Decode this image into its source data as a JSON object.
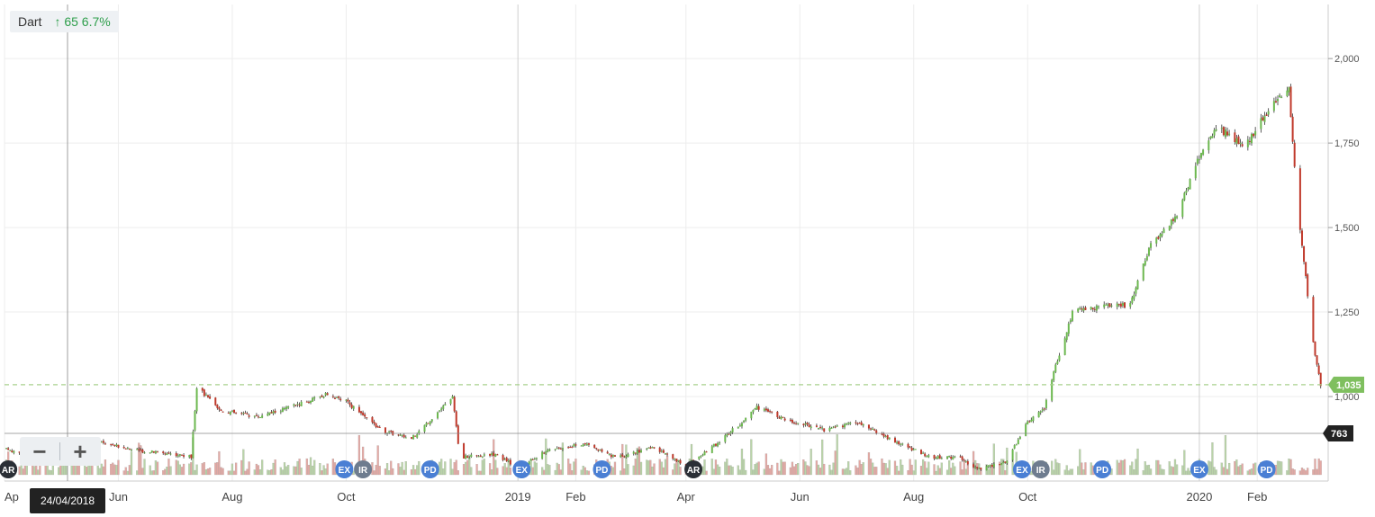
{
  "legend": {
    "symbol": "Dart",
    "arrow": "↑",
    "change": "65 6.7%"
  },
  "zoom": {
    "out_label": "−",
    "in_label": "+"
  },
  "crosshair": {
    "date_label": "24/04/2018",
    "price_label": "763"
  },
  "last_price": {
    "label": "1,035",
    "value": 1035
  },
  "colors": {
    "up": "#6cb84f",
    "down": "#c0392b",
    "vol_up": "#b9d4a8",
    "vol_down": "#e4a9a4",
    "last_line": "#a9d08e",
    "event_blue": "#4a7fd4",
    "event_gray": "#6e7c8f",
    "event_dark": "#2b2f36"
  },
  "chart_data": {
    "type": "candlestick",
    "title": "",
    "series_name": "Dart",
    "y_axis": {
      "position": "right",
      "ylim": [
        750,
        2160
      ],
      "ticks": [
        1000,
        1250,
        1500,
        1750,
        2000
      ],
      "tick_labels": [
        "1,000",
        "1,250",
        "1,500",
        "1,750",
        "2,000"
      ]
    },
    "x_axis": {
      "xlim": [
        "2018-04-01",
        "2020-03-10"
      ],
      "ticks": [
        {
          "label": "Ap",
          "date": "2018-04-01"
        },
        {
          "label": "Jun",
          "date": "2018-06-01"
        },
        {
          "label": "Aug",
          "date": "2018-08-01"
        },
        {
          "label": "Oct",
          "date": "2018-10-01"
        },
        {
          "label": "2019",
          "date": "2019-01-01"
        },
        {
          "label": "Feb",
          "date": "2019-02-01"
        },
        {
          "label": "Apr",
          "date": "2019-04-01"
        },
        {
          "label": "Jun",
          "date": "2019-06-01"
        },
        {
          "label": "Aug",
          "date": "2019-08-01"
        },
        {
          "label": "Oct",
          "date": "2019-10-01"
        },
        {
          "label": "2020",
          "date": "2020-01-01"
        },
        {
          "label": "Feb",
          "date": "2020-02-01"
        }
      ]
    },
    "grid": true,
    "price_path": [
      [
        "2018-04-01",
        845
      ],
      [
        "2018-04-20",
        820
      ],
      [
        "2018-05-08",
        858
      ],
      [
        "2018-05-25",
        865
      ],
      [
        "2018-06-08",
        842
      ],
      [
        "2018-06-28",
        832
      ],
      [
        "2018-07-10",
        822
      ],
      [
        "2018-07-13",
        1030
      ],
      [
        "2018-07-25",
        960
      ],
      [
        "2018-08-15",
        940
      ],
      [
        "2018-09-10",
        985
      ],
      [
        "2018-09-20",
        1005
      ],
      [
        "2018-10-01",
        985
      ],
      [
        "2018-10-20",
        900
      ],
      [
        "2018-11-05",
        875
      ],
      [
        "2018-11-20",
        960
      ],
      [
        "2018-11-27",
        995
      ],
      [
        "2018-12-01",
        820
      ],
      [
        "2018-12-20",
        830
      ],
      [
        "2019-01-01",
        790
      ],
      [
        "2019-01-18",
        845
      ],
      [
        "2019-02-05",
        860
      ],
      [
        "2019-02-22",
        820
      ],
      [
        "2019-03-15",
        850
      ],
      [
        "2019-04-01",
        795
      ],
      [
        "2019-04-15",
        850
      ],
      [
        "2019-05-01",
        925
      ],
      [
        "2019-05-08",
        970
      ],
      [
        "2019-05-25",
        930
      ],
      [
        "2019-06-15",
        900
      ],
      [
        "2019-07-01",
        925
      ],
      [
        "2019-07-25",
        860
      ],
      [
        "2019-08-10",
        820
      ],
      [
        "2019-08-25",
        820
      ],
      [
        "2019-09-05",
        785
      ],
      [
        "2019-09-20",
        810
      ],
      [
        "2019-10-01",
        925
      ],
      [
        "2019-10-10",
        965
      ],
      [
        "2019-10-15",
        1070
      ],
      [
        "2019-10-25",
        1250
      ],
      [
        "2019-11-10",
        1270
      ],
      [
        "2019-11-25",
        1270
      ],
      [
        "2019-12-05",
        1440
      ],
      [
        "2019-12-20",
        1540
      ],
      [
        "2020-01-01",
        1710
      ],
      [
        "2020-01-10",
        1800
      ],
      [
        "2020-01-25",
        1740
      ],
      [
        "2020-02-10",
        1870
      ],
      [
        "2020-02-18",
        1910
      ],
      [
        "2020-02-22",
        1600
      ],
      [
        "2020-02-27",
        1350
      ],
      [
        "2020-03-03",
        1120
      ],
      [
        "2020-03-06",
        1035
      ]
    ],
    "events": [
      {
        "label": "AR",
        "date": "2018-04-03"
      },
      {
        "label": "EX",
        "date": "2018-09-30"
      },
      {
        "label": "IR",
        "date": "2018-10-10"
      },
      {
        "label": "PD",
        "date": "2018-11-15"
      },
      {
        "label": "EX",
        "date": "2019-01-03"
      },
      {
        "label": "PD",
        "date": "2019-02-15"
      },
      {
        "label": "AR",
        "date": "2019-04-05"
      },
      {
        "label": "EX",
        "date": "2019-09-28"
      },
      {
        "label": "IR",
        "date": "2019-10-08"
      },
      {
        "label": "PD",
        "date": "2019-11-10"
      },
      {
        "label": "EX",
        "date": "2020-01-01"
      },
      {
        "label": "PD",
        "date": "2020-02-06"
      }
    ]
  }
}
